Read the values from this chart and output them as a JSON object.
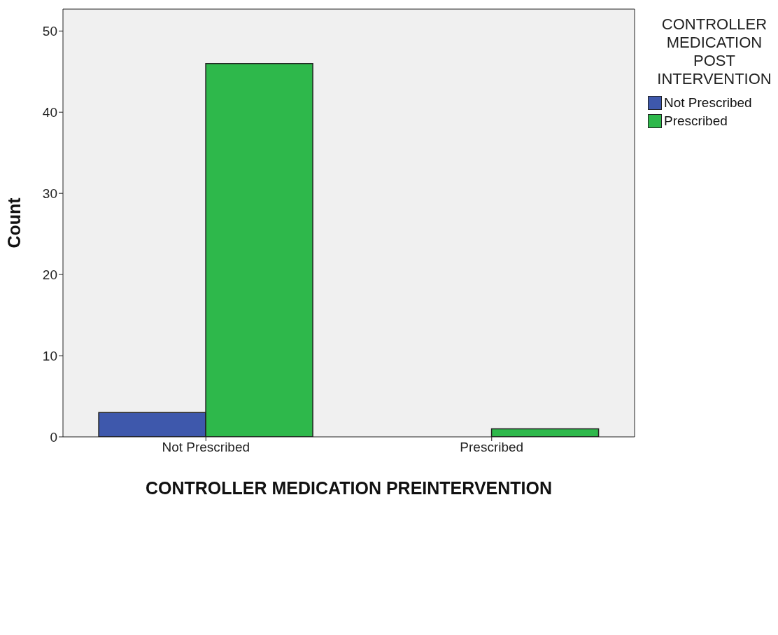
{
  "chart_data": {
    "type": "bar",
    "xlabel": "CONTROLLER MEDICATION PREINTERVENTION",
    "ylabel": "Count",
    "legend_title": "CONTROLLER MEDICATION POST INTERVENTION",
    "categories": [
      "Not Prescribed",
      "Prescribed"
    ],
    "series": [
      {
        "name": "Not Prescribed",
        "color": "#3e58ac",
        "values": [
          3,
          null
        ]
      },
      {
        "name": "Prescribed",
        "color": "#2eb84b",
        "values": [
          46,
          1
        ]
      }
    ],
    "ylim": [
      0,
      52.7
    ],
    "yticks": [
      0,
      10,
      20,
      30,
      40,
      50
    ],
    "legend": "top right"
  }
}
